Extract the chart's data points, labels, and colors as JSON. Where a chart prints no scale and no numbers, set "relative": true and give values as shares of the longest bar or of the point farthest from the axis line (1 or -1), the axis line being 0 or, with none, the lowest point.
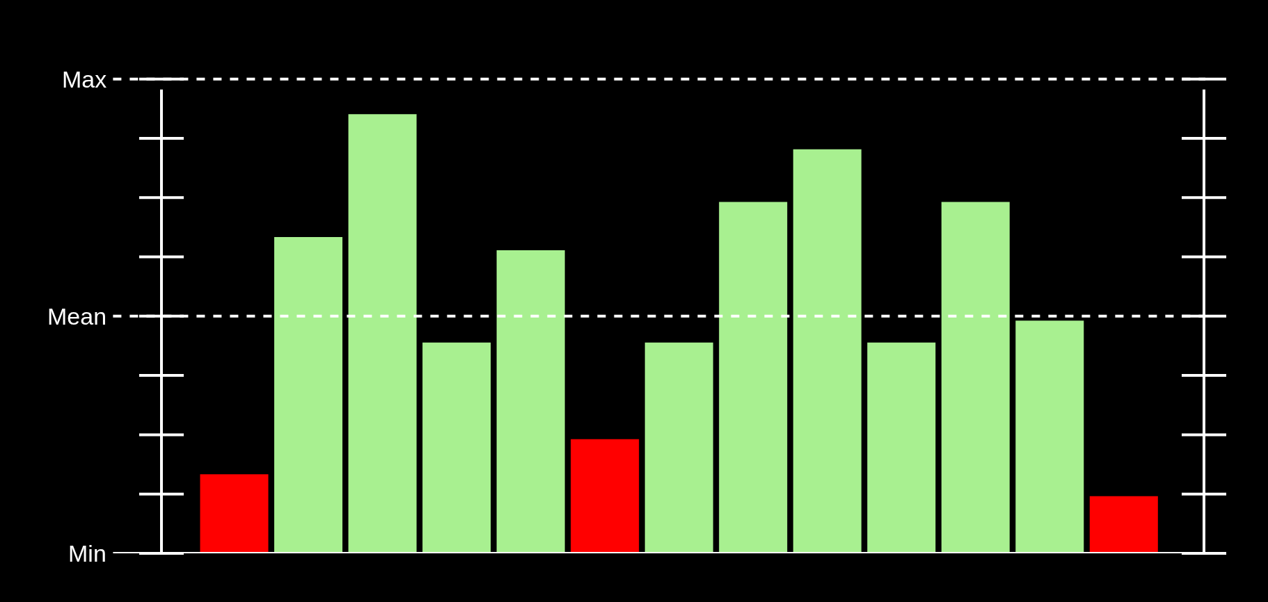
{
  "chart_data": {
    "type": "bar",
    "categories": [
      null,
      null,
      null,
      null,
      null,
      null,
      null,
      null,
      null,
      null,
      null,
      null,
      null
    ],
    "values": [
      0.18,
      0.72,
      1,
      0.48,
      0.69,
      0.26,
      0.48,
      0.8,
      0.92,
      0.48,
      0.8,
      0.53,
      0.13
    ],
    "colors": [
      "#ff0000",
      "#a8f090",
      "#a8f090",
      "#a8f090",
      "#a8f090",
      "#ff0000",
      "#a8f090",
      "#a8f090",
      "#a8f090",
      "#a8f090",
      "#a8f090",
      "#a8f090",
      "#ff0000"
    ],
    "relative": true,
    "ref_lines": [
      {
        "axis": "y",
        "value": 1.08,
        "label": "Max",
        "color": "#ffffff",
        "line_style": "dashed"
      },
      {
        "axis": "y",
        "value": 0.54,
        "label": "Mean",
        "color": "#ffffff",
        "line_style": "dashed"
      },
      {
        "axis": "y",
        "value": 0,
        "label": "Min",
        "color": "#ffffff",
        "line_style": "solid"
      }
    ]
  }
}
